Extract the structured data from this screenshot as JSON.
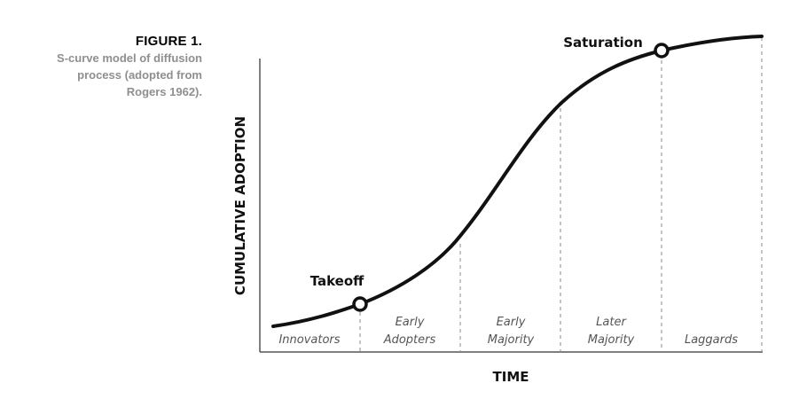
{
  "caption": {
    "title": "FIGURE 1.",
    "lines": [
      "S-curve model of diffusion",
      "process (adopted from",
      "Rogers 1962)."
    ]
  },
  "axes": {
    "y_title": "CUMULATIVE ADOPTION",
    "x_title": "TIME"
  },
  "points": {
    "takeoff": "Takeoff",
    "saturation": "Saturation"
  },
  "stages": [
    {
      "lines": [
        "Innovators"
      ]
    },
    {
      "lines": [
        "Early",
        "Adopters"
      ]
    },
    {
      "lines": [
        "Early",
        "Majority"
      ]
    },
    {
      "lines": [
        "Later",
        "Majority"
      ]
    },
    {
      "lines": [
        "Laggards"
      ]
    }
  ],
  "colors": {
    "curve": "#111111",
    "axis": "#555555",
    "divider": "#888888",
    "caption_title": "#000000",
    "caption_text": "#8f8f8f"
  }
}
